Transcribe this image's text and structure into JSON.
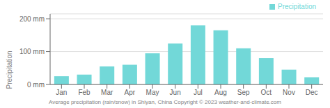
{
  "chart_data": {
    "type": "bar",
    "categories": [
      "Jan",
      "Feb",
      "Mar",
      "Apr",
      "May",
      "Jun",
      "Jul",
      "Aug",
      "Sep",
      "Oct",
      "Nov",
      "Dec"
    ],
    "series": [
      {
        "name": "Precipitation",
        "color": "#72d8d8",
        "values": [
          25,
          30,
          55,
          60,
          95,
          125,
          180,
          165,
          110,
          80,
          45,
          22
        ]
      }
    ],
    "ylabel": "Precipitation",
    "ylim": [
      0,
      215
    ],
    "yticks": [
      {
        "value": 0,
        "label": "0 mm"
      },
      {
        "value": 100,
        "label": "100 mm"
      },
      {
        "value": 200,
        "label": "200 mm"
      }
    ],
    "grid": true,
    "legend": "upper right",
    "caption": "Average precipitation (rain/snow) in Shiyan, China   Copyright © 2023  weather-and-climate.com"
  }
}
